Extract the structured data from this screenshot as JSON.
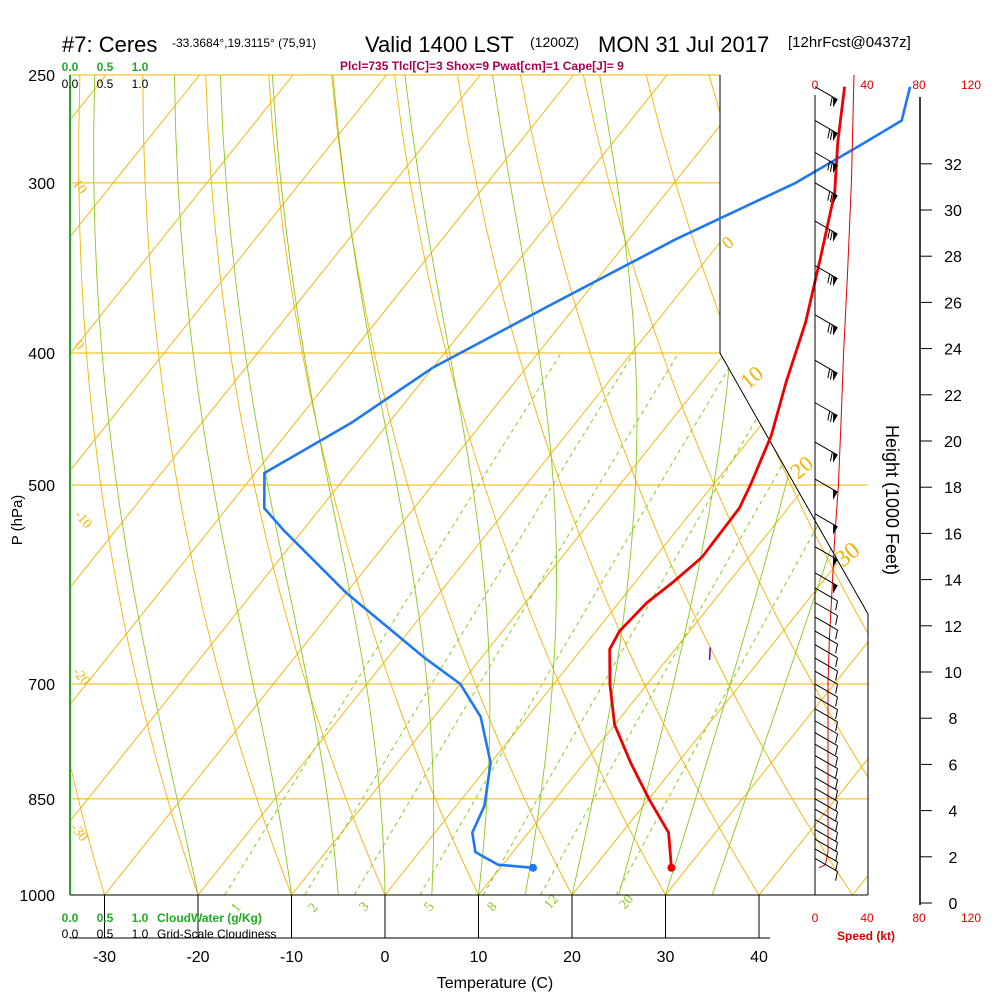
{
  "header": {
    "station": "#7: Ceres",
    "coords": "-33.3684°,19.3115° (75,91)",
    "valid": "Valid 1400 LST",
    "zulu": "(1200Z)",
    "date": "MON 31 Jul 2017",
    "forecast": "[12hrFcst@0437z]"
  },
  "indices": "Plcl=735 Tlcl[C]=3 Shox=9 Pwat[cm]=1 Cape[J]= 9",
  "chart_data": {
    "type": "line",
    "xlabel": "Temperature (C)",
    "ylabel": "P (hPa)",
    "height_label": "Height (1000 Feet)",
    "x_ticks": [
      "-30",
      "-20",
      "-10",
      "0",
      "10",
      "20",
      "30",
      "40"
    ],
    "y_ticks": [
      "250",
      "300",
      "400",
      "500",
      "700",
      "850",
      "1000"
    ],
    "height_ticks": [
      "0",
      "2",
      "4",
      "6",
      "8",
      "10",
      "12",
      "14",
      "16",
      "18",
      "20",
      "22",
      "24",
      "26",
      "28",
      "30",
      "32"
    ],
    "speed_ticks": [
      "0",
      "40",
      "80",
      "120"
    ],
    "speed_label": "Speed (kt)",
    "cloudwater_ticks": [
      "0.0",
      "0.5",
      "1.0"
    ],
    "cloudwater_label": "CloudWater (g/Kg)",
    "cloudiness_ticks": [
      "0.0",
      "0.5",
      "1.0"
    ],
    "cloudiness_label": "Grid-Scale Cloudiness",
    "isotherm_labels": [
      "10",
      "0",
      "-10",
      "-20",
      "-30"
    ],
    "adiabat_labels": [
      "0",
      "10",
      "20",
      "30"
    ],
    "mixing_ratio_labels": [
      "1",
      "2",
      "3",
      "5",
      "8",
      "12",
      "20"
    ],
    "temperature": {
      "name": "Temperature",
      "color": "#ee0000",
      "points": [
        [
          28.3,
          955
        ],
        [
          25,
          900
        ],
        [
          20,
          850
        ],
        [
          15,
          800
        ],
        [
          10,
          750
        ],
        [
          6,
          700
        ],
        [
          3,
          660
        ],
        [
          2.5,
          640
        ],
        [
          3,
          610
        ],
        [
          4,
          590
        ],
        [
          5,
          565
        ],
        [
          4.8,
          520
        ],
        [
          4,
          500
        ],
        [
          2,
          460
        ],
        [
          -1,
          420
        ],
        [
          -4,
          380
        ],
        [
          -8,
          340
        ],
        [
          -12,
          305
        ],
        [
          -16,
          280
        ],
        [
          -20,
          255
        ]
      ]
    },
    "dewpoint": {
      "name": "Dewpoint",
      "color": "#1e78f0",
      "points": [
        [
          13.5,
          955
        ],
        [
          9.5,
          950
        ],
        [
          6,
          930
        ],
        [
          4,
          900
        ],
        [
          3,
          860
        ],
        [
          0,
          800
        ],
        [
          -5,
          740
        ],
        [
          -10,
          700
        ],
        [
          -16,
          670
        ],
        [
          -30,
          600
        ],
        [
          -42,
          540
        ],
        [
          -46,
          520
        ],
        [
          -49,
          490
        ],
        [
          -44,
          450
        ],
        [
          -40,
          410
        ],
        [
          -33,
          370
        ],
        [
          -25,
          330
        ],
        [
          -17,
          300
        ],
        [
          -13,
          280
        ],
        [
          -11,
          270
        ],
        [
          -13,
          255
        ]
      ]
    },
    "parcel_marker": {
      "points": [
        [
          13.6,
          658
        ],
        [
          14.6,
          672
        ]
      ],
      "color": "#800080"
    },
    "surface_temp": 28.3,
    "surface_dewpoint": 13.5,
    "surface_pressure": 955,
    "wind_speed_profile": [
      [
        3,
        955
      ],
      [
        8,
        950
      ],
      [
        10,
        930
      ],
      [
        10,
        900
      ],
      [
        10,
        850
      ],
      [
        10,
        800
      ],
      [
        10,
        750
      ],
      [
        10,
        700
      ],
      [
        11,
        650
      ],
      [
        13,
        600
      ],
      [
        15,
        550
      ],
      [
        18,
        500
      ],
      [
        20,
        450
      ],
      [
        22,
        400
      ],
      [
        25,
        350
      ],
      [
        28,
        300
      ],
      [
        30,
        250
      ]
    ],
    "wind_barbs": [
      {
        "p": 940,
        "spd": 10,
        "dir": 300
      },
      {
        "p": 925,
        "spd": 10,
        "dir": 300
      },
      {
        "p": 910,
        "spd": 10,
        "dir": 300
      },
      {
        "p": 895,
        "spd": 10,
        "dir": 300
      },
      {
        "p": 880,
        "spd": 10,
        "dir": 300
      },
      {
        "p": 865,
        "spd": 10,
        "dir": 300
      },
      {
        "p": 850,
        "spd": 10,
        "dir": 300
      },
      {
        "p": 835,
        "spd": 10,
        "dir": 300
      },
      {
        "p": 820,
        "spd": 10,
        "dir": 300
      },
      {
        "p": 805,
        "spd": 10,
        "dir": 300
      },
      {
        "p": 790,
        "spd": 10,
        "dir": 300
      },
      {
        "p": 775,
        "spd": 10,
        "dir": 300
      },
      {
        "p": 760,
        "spd": 10,
        "dir": 300
      },
      {
        "p": 745,
        "spd": 10,
        "dir": 300
      },
      {
        "p": 730,
        "spd": 10,
        "dir": 300
      },
      {
        "p": 715,
        "spd": 10,
        "dir": 300
      },
      {
        "p": 700,
        "spd": 10,
        "dir": 300
      },
      {
        "p": 685,
        "spd": 10,
        "dir": 300
      },
      {
        "p": 670,
        "spd": 10,
        "dir": 300
      },
      {
        "p": 655,
        "spd": 10,
        "dir": 300
      },
      {
        "p": 640,
        "spd": 10,
        "dir": 300
      },
      {
        "p": 625,
        "spd": 10,
        "dir": 300
      },
      {
        "p": 610,
        "spd": 10,
        "dir": 300
      },
      {
        "p": 595,
        "spd": 10,
        "dir": 300
      },
      {
        "p": 580,
        "spd": 50,
        "dir": 300
      },
      {
        "p": 555,
        "spd": 50,
        "dir": 300
      },
      {
        "p": 525,
        "spd": 50,
        "dir": 300
      },
      {
        "p": 495,
        "spd": 50,
        "dir": 300
      },
      {
        "p": 465,
        "spd": 60,
        "dir": 300
      },
      {
        "p": 435,
        "spd": 70,
        "dir": 300
      },
      {
        "p": 405,
        "spd": 70,
        "dir": 300
      },
      {
        "p": 375,
        "spd": 70,
        "dir": 300
      },
      {
        "p": 345,
        "spd": 70,
        "dir": 300
      },
      {
        "p": 320,
        "spd": 70,
        "dir": 300
      },
      {
        "p": 300,
        "spd": 70,
        "dir": 300
      },
      {
        "p": 285,
        "spd": 70,
        "dir": 300
      },
      {
        "p": 270,
        "spd": 70,
        "dir": 300
      },
      {
        "p": 255,
        "spd": 60,
        "dir": 300
      }
    ],
    "colors": {
      "isobar": "#f0b400",
      "adiabat": "#f0b400",
      "moist_adiabat": "#8cc81e",
      "mixing_ratio": "#8cc81e",
      "cloud_axis": "#22aa22",
      "header_indices": "#aa0050",
      "speed": "#dd0000"
    }
  }
}
